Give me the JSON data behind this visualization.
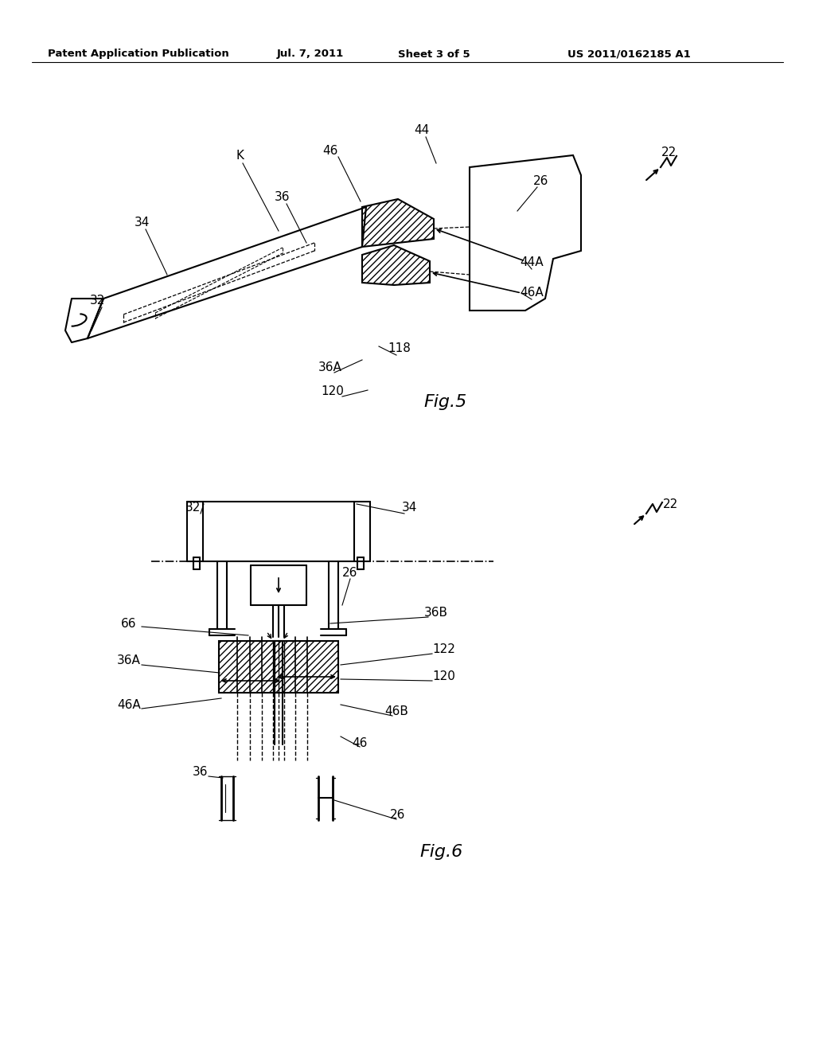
{
  "bg_color": "#ffffff",
  "header_text": "Patent Application Publication",
  "header_date": "Jul. 7, 2011",
  "header_sheet": "Sheet 3 of 5",
  "header_patent": "US 2011/0162185 A1",
  "fig5_label": "Fig.5",
  "fig6_label": "Fig.6",
  "line_color": "#000000"
}
